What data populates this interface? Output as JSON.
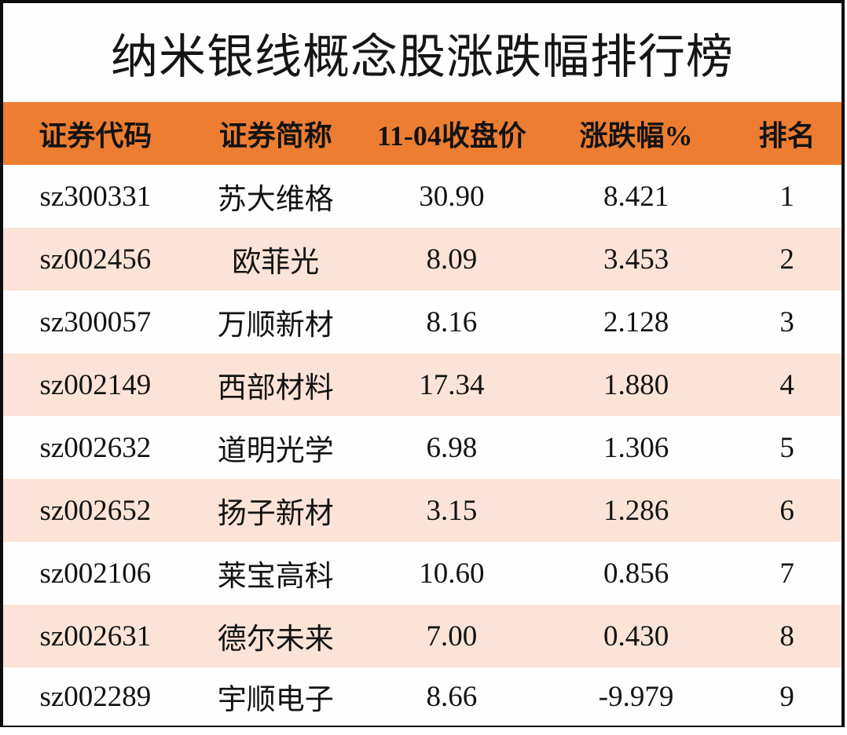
{
  "page_title": "纳米银线概念股涨跌幅排行榜",
  "colors": {
    "header_bg": "#ED7D31",
    "stripe_bg": "#FBE3D7",
    "row_bg": "#FEFEFE",
    "frame_border": "#0D0D0D",
    "text": "#131313"
  },
  "chart_data": {
    "type": "table",
    "title": "纳米银线概念股涨跌幅排行榜",
    "columns": [
      "证券代码",
      "证券简称",
      "11-04收盘价",
      "涨跌幅%",
      "排名"
    ],
    "rows": [
      [
        "sz300331",
        "苏大维格",
        "30.90",
        "8.421",
        "1"
      ],
      [
        "sz002456",
        "欧菲光",
        "8.09",
        "3.453",
        "2"
      ],
      [
        "sz300057",
        "万顺新材",
        "8.16",
        "2.128",
        "3"
      ],
      [
        "sz002149",
        "西部材料",
        "17.34",
        "1.880",
        "4"
      ],
      [
        "sz002632",
        "道明光学",
        "6.98",
        "1.306",
        "5"
      ],
      [
        "sz002652",
        "扬子新材",
        "3.15",
        "1.286",
        "6"
      ],
      [
        "sz002106",
        "莱宝高科",
        "10.60",
        "0.856",
        "7"
      ],
      [
        "sz002631",
        "德尔未来",
        "7.00",
        "0.430",
        "8"
      ],
      [
        "sz002289",
        "宇顺电子",
        "8.66",
        "-9.979",
        "9"
      ]
    ],
    "layout": {
      "striped": true,
      "stripe_pattern": "odd rows white, even rows light peach",
      "header_text_color": "#131313",
      "grid": false
    }
  }
}
